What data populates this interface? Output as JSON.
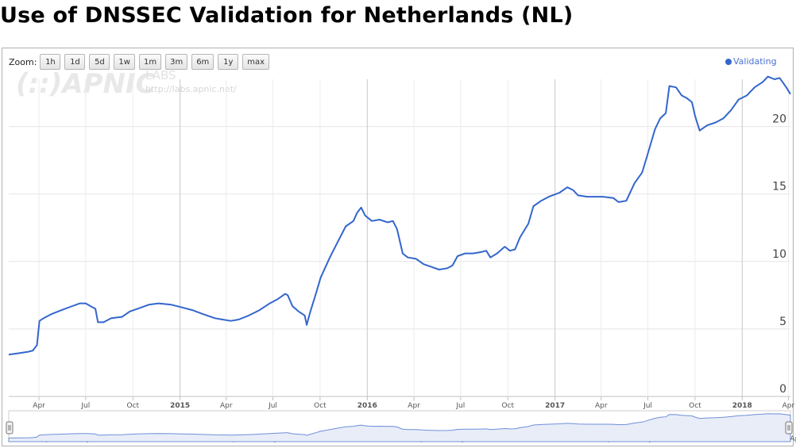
{
  "title": "Use of DNSSEC Validation for Netherlands (NL)",
  "zoom": {
    "label": "Zoom:",
    "buttons": [
      "1h",
      "1d",
      "5d",
      "1w",
      "1m",
      "3m",
      "6m",
      "1y",
      "max"
    ]
  },
  "logo": {
    "main": "(::)APNIC",
    "sub": "LABS",
    "url": "http://labs.apnic.net/"
  },
  "colors": {
    "series": "#3366cc",
    "navigator_fill": "#e8edf8",
    "grid": "#e6e6e6"
  },
  "chart_data": {
    "type": "line",
    "title": "Use of DNSSEC Validation for Netherlands (NL)",
    "xlabel": "",
    "ylabel": "",
    "x_range": [
      "2014-02-01",
      "2018-04-05"
    ],
    "ylim": [
      0,
      23.5
    ],
    "y_ticks": [
      0,
      5,
      10,
      15,
      20
    ],
    "grid": true,
    "legend_position": "top-right",
    "x_ticks": [
      {
        "date": "2014-04-01",
        "label": "Apr"
      },
      {
        "date": "2014-07-01",
        "label": "Jul"
      },
      {
        "date": "2014-10-01",
        "label": "Oct"
      },
      {
        "date": "2015-01-01",
        "label": "2015"
      },
      {
        "date": "2015-04-01",
        "label": "Apr"
      },
      {
        "date": "2015-07-01",
        "label": "Jul"
      },
      {
        "date": "2015-10-01",
        "label": "Oct"
      },
      {
        "date": "2016-01-01",
        "label": "2016"
      },
      {
        "date": "2016-04-01",
        "label": "Apr"
      },
      {
        "date": "2016-07-01",
        "label": "Jul"
      },
      {
        "date": "2016-10-01",
        "label": "Oct"
      },
      {
        "date": "2017-01-01",
        "label": "2017"
      },
      {
        "date": "2017-04-01",
        "label": "Apr"
      },
      {
        "date": "2017-07-01",
        "label": "Jul"
      },
      {
        "date": "2017-10-01",
        "label": "Oct"
      },
      {
        "date": "2018-01-01",
        "label": "2018"
      },
      {
        "date": "2018-04-01",
        "label": "Apr"
      }
    ],
    "series": [
      {
        "name": "Validating",
        "color": "#3366cc",
        "points": [
          [
            "2014-02-01",
            3.1
          ],
          [
            "2014-02-20",
            3.2
          ],
          [
            "2014-03-10",
            3.3
          ],
          [
            "2014-03-20",
            3.4
          ],
          [
            "2014-03-28",
            3.8
          ],
          [
            "2014-04-02",
            5.6
          ],
          [
            "2014-04-10",
            5.8
          ],
          [
            "2014-04-25",
            6.1
          ],
          [
            "2014-05-15",
            6.4
          ],
          [
            "2014-06-05",
            6.7
          ],
          [
            "2014-06-20",
            6.9
          ],
          [
            "2014-07-01",
            6.9
          ],
          [
            "2014-07-10",
            6.7
          ],
          [
            "2014-07-20",
            6.5
          ],
          [
            "2014-07-25",
            5.5
          ],
          [
            "2014-08-05",
            5.5
          ],
          [
            "2014-08-20",
            5.8
          ],
          [
            "2014-09-10",
            5.9
          ],
          [
            "2014-09-25",
            6.3
          ],
          [
            "2014-10-10",
            6.5
          ],
          [
            "2014-11-01",
            6.8
          ],
          [
            "2014-11-20",
            6.9
          ],
          [
            "2014-12-15",
            6.8
          ],
          [
            "2015-01-05",
            6.6
          ],
          [
            "2015-01-25",
            6.4
          ],
          [
            "2015-02-15",
            6.1
          ],
          [
            "2015-03-10",
            5.8
          ],
          [
            "2015-03-25",
            5.7
          ],
          [
            "2015-04-10",
            5.6
          ],
          [
            "2015-04-25",
            5.7
          ],
          [
            "2015-05-15",
            6.0
          ],
          [
            "2015-06-05",
            6.4
          ],
          [
            "2015-06-25",
            6.9
          ],
          [
            "2015-07-10",
            7.2
          ],
          [
            "2015-07-25",
            7.6
          ],
          [
            "2015-07-30",
            7.5
          ],
          [
            "2015-08-08",
            6.7
          ],
          [
            "2015-08-20",
            6.3
          ],
          [
            "2015-09-01",
            6.0
          ],
          [
            "2015-09-05",
            5.3
          ],
          [
            "2015-09-12",
            6.3
          ],
          [
            "2015-09-22",
            7.5
          ],
          [
            "2015-10-02",
            8.8
          ],
          [
            "2015-10-20",
            10.3
          ],
          [
            "2015-11-05",
            11.5
          ],
          [
            "2015-11-20",
            12.6
          ],
          [
            "2015-12-05",
            13.0
          ],
          [
            "2015-12-12",
            13.6
          ],
          [
            "2015-12-20",
            14.0
          ],
          [
            "2015-12-28",
            13.4
          ],
          [
            "2016-01-10",
            13.0
          ],
          [
            "2016-01-25",
            13.1
          ],
          [
            "2016-02-10",
            12.9
          ],
          [
            "2016-02-20",
            13.0
          ],
          [
            "2016-02-28",
            12.4
          ],
          [
            "2016-03-10",
            10.6
          ],
          [
            "2016-03-20",
            10.3
          ],
          [
            "2016-04-05",
            10.2
          ],
          [
            "2016-04-20",
            9.8
          ],
          [
            "2016-05-05",
            9.6
          ],
          [
            "2016-05-20",
            9.4
          ],
          [
            "2016-06-05",
            9.5
          ],
          [
            "2016-06-15",
            9.7
          ],
          [
            "2016-06-25",
            10.4
          ],
          [
            "2016-07-10",
            10.6
          ],
          [
            "2016-07-25",
            10.6
          ],
          [
            "2016-08-10",
            10.7
          ],
          [
            "2016-08-20",
            10.8
          ],
          [
            "2016-08-28",
            10.3
          ],
          [
            "2016-09-10",
            10.6
          ],
          [
            "2016-09-25",
            11.1
          ],
          [
            "2016-10-05",
            10.8
          ],
          [
            "2016-10-15",
            10.9
          ],
          [
            "2016-10-25",
            11.8
          ],
          [
            "2016-11-10",
            12.8
          ],
          [
            "2016-11-20",
            14.1
          ],
          [
            "2016-12-05",
            14.5
          ],
          [
            "2016-12-20",
            14.8
          ],
          [
            "2017-01-10",
            15.1
          ],
          [
            "2017-01-25",
            15.5
          ],
          [
            "2017-02-05",
            15.3
          ],
          [
            "2017-02-15",
            14.9
          ],
          [
            "2017-03-05",
            14.8
          ],
          [
            "2017-04-05",
            14.8
          ],
          [
            "2017-04-25",
            14.7
          ],
          [
            "2017-05-05",
            14.4
          ],
          [
            "2017-05-20",
            14.5
          ],
          [
            "2017-06-05",
            15.8
          ],
          [
            "2017-06-20",
            16.6
          ],
          [
            "2017-07-01",
            18.0
          ],
          [
            "2017-07-15",
            19.8
          ],
          [
            "2017-07-25",
            20.6
          ],
          [
            "2017-08-05",
            21.0
          ],
          [
            "2017-08-12",
            23.0
          ],
          [
            "2017-08-25",
            22.9
          ],
          [
            "2017-09-05",
            22.3
          ],
          [
            "2017-09-15",
            22.1
          ],
          [
            "2017-09-25",
            21.8
          ],
          [
            "2017-10-01",
            20.8
          ],
          [
            "2017-10-10",
            19.7
          ],
          [
            "2017-10-25",
            20.1
          ],
          [
            "2017-11-10",
            20.3
          ],
          [
            "2017-11-25",
            20.6
          ],
          [
            "2017-12-10",
            21.2
          ],
          [
            "2017-12-25",
            22.0
          ],
          [
            "2018-01-10",
            22.3
          ],
          [
            "2018-01-25",
            22.9
          ],
          [
            "2018-02-10",
            23.3
          ],
          [
            "2018-02-20",
            23.7
          ],
          [
            "2018-03-05",
            23.5
          ],
          [
            "2018-03-15",
            23.6
          ],
          [
            "2018-03-28",
            22.9
          ],
          [
            "2018-04-05",
            22.4
          ]
        ]
      }
    ]
  }
}
